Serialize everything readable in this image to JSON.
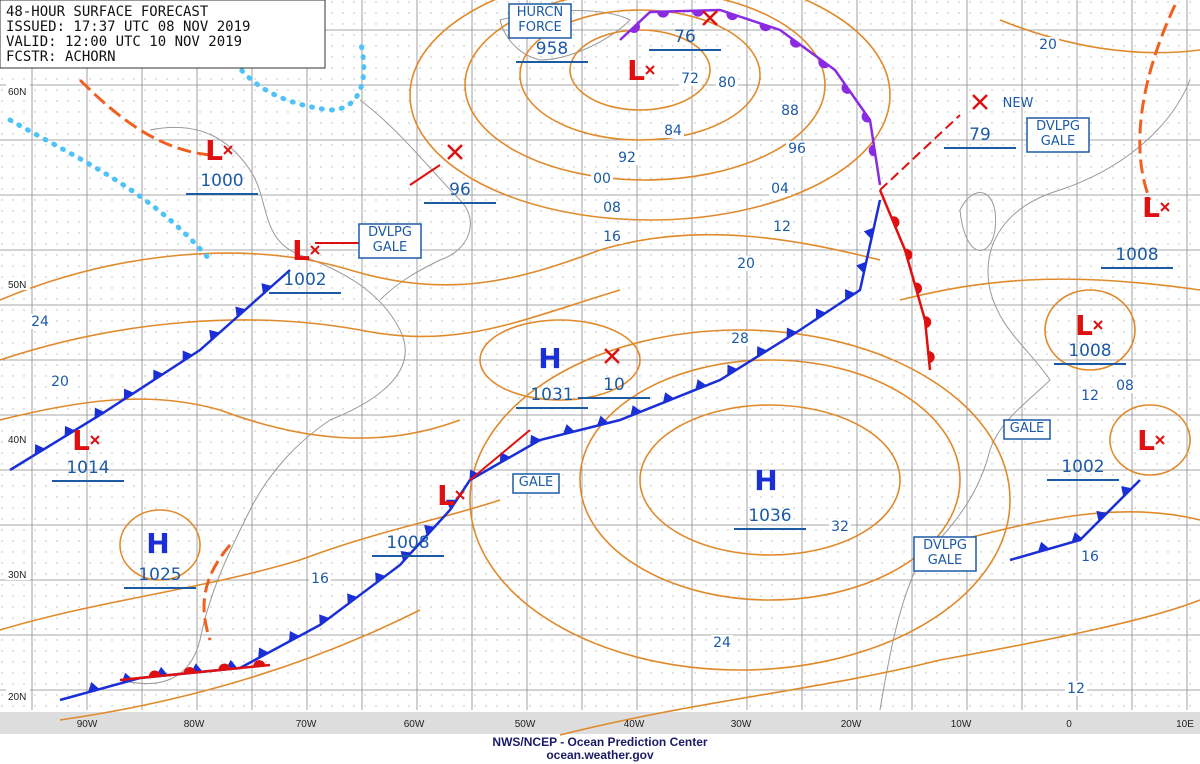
{
  "header": {
    "lines": [
      "48-HOUR SURFACE FORECAST",
      "ISSUED: 17:37 UTC 08 NOV 2019",
      "VALID:  12:00 UTC 10 NOV 2019",
      "FCSTR: ACHORN"
    ]
  },
  "footer": {
    "lines": [
      "NWS/NCEP - Ocean Prediction Center",
      "ocean.weather.gov"
    ]
  },
  "latitude_labels": [
    "60N",
    "50N",
    "40N",
    "30N",
    "20N"
  ],
  "longitude_labels": [
    "90W",
    "80W",
    "70W",
    "60W",
    "50W",
    "40W",
    "30W",
    "20W",
    "10W",
    "0",
    "10E"
  ],
  "pressure_centers": [
    {
      "symbol": "L",
      "pressure": "1000"
    },
    {
      "symbol": "L",
      "pressure": "1002"
    },
    {
      "symbol": "L",
      "pressure": "958"
    },
    {
      "pressure": "76"
    },
    {
      "pressure": "96"
    },
    {
      "symbol": "L",
      "pressure": "1014"
    },
    {
      "symbol": "H",
      "pressure": "1025"
    },
    {
      "symbol": "L",
      "pressure": "1008"
    },
    {
      "symbol": "H",
      "pressure": "1031"
    },
    {
      "pressure": "10"
    },
    {
      "symbol": "H",
      "pressure": "1036"
    },
    {
      "pressure": "79"
    },
    {
      "symbol": "L",
      "pressure": "1008"
    },
    {
      "symbol": "L",
      "pressure": "1002"
    },
    {
      "symbol": "L",
      "pressure": "1008"
    }
  ],
  "boxed_labels": [
    {
      "lines": [
        "HURCN",
        "FORCE"
      ]
    },
    {
      "lines": [
        "DVLPG",
        "GALE"
      ]
    },
    {
      "lines": [
        "GALE"
      ]
    },
    {
      "lines": [
        "DVLPG",
        "GALE"
      ]
    },
    {
      "lines": [
        "GALE"
      ]
    },
    {
      "lines": [
        "DVLPG",
        "GALE"
      ]
    }
  ],
  "annotations": [
    "NEW"
  ],
  "isobar_labels": [
    "20",
    "72",
    "80",
    "84",
    "88",
    "92",
    "96",
    "00",
    "04",
    "08",
    "12",
    "16",
    "20",
    "28",
    "24",
    "20",
    "32",
    "16",
    "24",
    "12",
    "12",
    "08",
    "16"
  ]
}
